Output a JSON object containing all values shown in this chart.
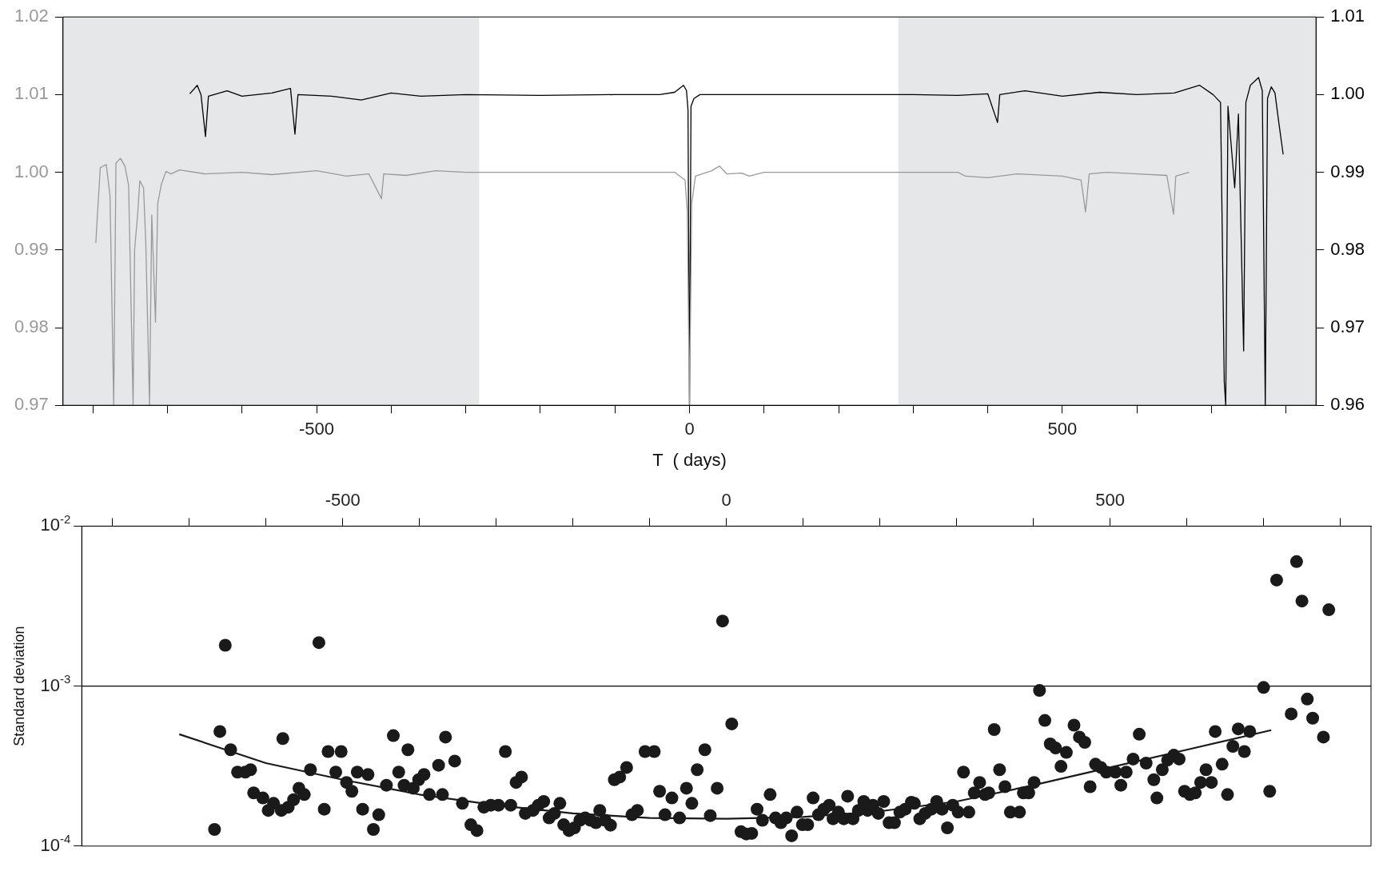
{
  "chart_data": [
    {
      "type": "line",
      "xlabel": "T  ( days)",
      "xlim": [
        -840,
        840
      ],
      "xticks": [
        {
          "value": -800,
          "label": null
        },
        {
          "value": -700,
          "label": null
        },
        {
          "value": -600,
          "label": null
        },
        -500,
        {
          "value": -400,
          "label": null
        },
        {
          "value": -300,
          "label": null
        },
        {
          "value": -200,
          "label": null
        },
        {
          "value": -100,
          "label": null
        },
        0,
        {
          "value": 100,
          "label": null
        },
        {
          "value": 200,
          "label": null
        },
        {
          "value": 300,
          "label": null
        },
        {
          "value": 400,
          "label": null
        },
        500,
        {
          "value": 600,
          "label": null
        },
        {
          "value": 700,
          "label": null
        },
        {
          "value": 800,
          "label": null
        }
      ],
      "ylim": [
        0.97,
        1.02
      ],
      "yticks": [
        0.97,
        0.98,
        0.99,
        {
          "value": 1,
          "label": "1.00"
        },
        1.01,
        1.02
      ],
      "y2lim": [
        0.96,
        1.01
      ],
      "y2ticks": [
        0.96,
        0.97,
        0.98,
        0.99,
        {
          "value": 1,
          "label": "1.00"
        },
        1.01
      ],
      "bands": [
        {
          "axis": "x",
          "from": -840,
          "to": -282,
          "color": "#e6e7e8"
        },
        {
          "axis": "x",
          "from": 280,
          "to": 840,
          "color": "#e6e7e8"
        }
      ],
      "series": [
        {
          "color": "#999999",
          "axis": "y",
          "x": [
            -796,
            -794,
            -790,
            -782,
            -777,
            -772,
            -769,
            -763,
            -757,
            -752,
            -746,
            -744,
            -740,
            -737,
            -732,
            -729,
            -724,
            -721,
            -716,
            -713,
            -708,
            -702,
            -695,
            -684,
            -650,
            -600,
            -560,
            -500,
            -460,
            -430,
            -413,
            -410,
            -380,
            -340,
            -300,
            -200,
            -100,
            -20,
            -6,
            -3,
            0,
            3,
            8,
            30,
            40,
            50,
            70,
            80,
            100,
            200,
            300,
            360,
            370,
            400,
            440,
            500,
            525,
            531,
            536,
            560,
            600,
            640,
            649,
            652,
            670
          ],
          "values": [
            0.9909,
            0.9943,
            1.0006,
            1.001,
            0.997,
            0.97,
            1.0012,
            1.0018,
            1.0008,
            0.9983,
            0.97,
            0.99,
            0.9945,
            0.9989,
            0.998,
            0.9909,
            0.97,
            0.9945,
            0.9807,
            0.996,
            0.9985,
            1.0001,
            0.9998,
            1.0003,
            0.9998,
            1.0,
            0.9997,
            1.0002,
            0.9995,
            0.9998,
            0.9966,
            0.9998,
            0.9996,
            1.0002,
            1.0,
            1.0,
            1.0,
            1.0,
            0.999,
            0.995,
            0.97,
            0.996,
            0.9995,
            1.0002,
            1.0008,
            0.9998,
            0.9999,
            0.9995,
            1.0,
            1.0,
            1.0,
            1.0,
            0.9995,
            0.9993,
            0.9998,
            0.9995,
            0.999,
            0.9949,
            0.9998,
            1.0,
            0.9998,
            0.9996,
            0.9946,
            0.9995,
            1.0
          ]
        },
        {
          "color": "#000000",
          "axis": "y2",
          "x": [
            -670,
            -660,
            -655,
            -649,
            -645,
            -620,
            -600,
            -560,
            -535,
            -529,
            -525,
            -480,
            -440,
            -400,
            -360,
            -300,
            -200,
            -100,
            -40,
            -20,
            -8,
            -4,
            -2,
            0,
            2,
            6,
            14,
            100,
            200,
            300,
            360,
            400,
            413,
            416,
            450,
            500,
            550,
            600,
            650,
            684,
            702,
            712,
            717,
            719,
            722,
            731,
            736,
            743,
            746,
            752,
            763,
            768,
            772,
            775,
            780,
            785,
            790,
            796
          ],
          "values": [
            1.0001,
            1.0012,
            1.0,
            0.9946,
            0.9998,
            1.0005,
            0.9998,
            1.0002,
            1.0008,
            0.9949,
            1.0,
            0.9998,
            0.9993,
            1.0002,
            0.9998,
            1.0,
            0.9999,
            1.0,
            1.0,
            1.0003,
            1.0012,
            1.0005,
            0.998,
            0.96,
            0.9985,
            0.9995,
            1.0,
            1.0,
            1.0,
            1.0,
            0.9999,
            1.0001,
            0.9964,
            1.0,
            1.0005,
            0.9998,
            1.0003,
            1.0,
            1.0002,
            1.0012,
            1.0,
            0.999,
            0.963,
            0.96,
            0.9985,
            0.988,
            0.9975,
            0.967,
            0.999,
            1.0012,
            1.0022,
            1.0005,
            0.96,
            0.9995,
            1.001,
            1.0002,
            0.9965,
            0.9923
          ]
        }
      ]
    },
    {
      "type": "scatter",
      "ylabel": "Standard deviation",
      "log": "y",
      "xlim": [
        -840,
        840
      ],
      "xticks": [
        {
          "value": -800,
          "label": null
        },
        {
          "value": -700,
          "label": null
        },
        {
          "value": -600,
          "label": null
        },
        -500,
        {
          "value": -400,
          "label": null
        },
        {
          "value": -300,
          "label": null
        },
        {
          "value": -200,
          "label": null
        },
        {
          "value": -100,
          "label": null
        },
        0,
        {
          "value": 100,
          "label": null
        },
        {
          "value": 200,
          "label": null
        },
        {
          "value": 300,
          "label": null
        },
        {
          "value": 400,
          "label": null
        },
        500,
        {
          "value": 600,
          "label": null
        },
        {
          "value": 700,
          "label": null
        },
        {
          "value": 800,
          "label": null
        }
      ],
      "ylim": [
        0.0001,
        0.01
      ],
      "yticks": [
        {
          "value": 0.0001,
          "label": "10$^{-4}$"
        },
        {
          "value": 0.001,
          "label": "10$^{-3}$"
        },
        {
          "value": 0.01,
          "label": "10$^{-2}$"
        }
      ],
      "ref_lines": [
        {
          "axis": "y",
          "value": 0.001,
          "color": "#000000"
        }
      ],
      "series": [
        {
          "type": "scatter",
          "marker": "circle",
          "color": "#1a1a1a",
          "x": [
            -667,
            -660,
            -653,
            -646,
            -637,
            -627,
            -620,
            -616,
            -604,
            -597,
            -590,
            -580,
            -578,
            -571,
            -564,
            -557,
            -550,
            -542,
            -531,
            -524,
            -519,
            -509,
            -502,
            -495,
            -488,
            -481,
            -474,
            -467,
            -460,
            -453,
            -443,
            -434,
            -427,
            -420,
            -415,
            -408,
            -401,
            -394,
            -387,
            -375,
            -370,
            -366,
            -354,
            -344,
            -333,
            -325,
            -316,
            -307,
            -297,
            -288,
            -281,
            -274,
            -267,
            -262,
            -252,
            -245,
            -238,
            -231,
            -224,
            -217,
            -212,
            -205,
            -198,
            -191,
            -184,
            -177,
            -170,
            -165,
            -158,
            -151,
            -146,
            -139,
            -130,
            -123,
            -116,
            -106,
            -94,
            -87,
            -80,
            -71,
            -61,
            -52,
            -45,
            -38,
            -28,
            -21,
            -12,
            -5,
            7,
            19,
            26,
            33,
            40,
            47,
            57,
            64,
            71,
            78,
            85,
            92,
            99,
            106,
            113,
            120,
            127,
            134,
            139,
            146,
            153,
            158,
            165,
            172,
            179,
            184,
            191,
            198,
            205,
            212,
            219,
            226,
            233,
            241,
            245,
            252,
            259,
            267,
            274,
            281,
            288,
            295,
            302,
            309,
            316,
            323,
            330,
            337,
            342,
            349,
            356,
            363,
            370,
            382,
            387,
            394,
            401,
            408,
            415,
            422,
            429,
            436,
            443,
            453,
            460,
            467,
            474,
            481,
            488,
            495,
            507,
            514,
            521,
            530,
            538,
            547,
            557,
            561,
            568,
            575,
            583,
            590,
            597,
            604,
            611,
            618,
            625,
            632,
            637,
            646,
            653,
            660,
            667,
            675,
            682,
            700,
            708,
            717,
            736,
            743,
            750,
            757,
            764,
            778,
            785
          ],
          "values": [
            0.000127,
            0.00052,
            0.0018,
            0.0004,
            0.00029,
            0.00029,
            0.0003,
            0.000215,
            0.0002,
            0.000167,
            0.000185,
            0.000167,
            0.00047,
            0.000175,
            0.000195,
            0.00023,
            0.00021,
            0.0003,
            0.00187,
            0.00017,
            0.00039,
            0.00029,
            0.00039,
            0.00025,
            0.00022,
            0.00029,
            0.00017,
            0.00028,
            0.000127,
            0.000157,
            0.00024,
            0.00049,
            0.00029,
            0.00024,
            0.0004,
            0.00023,
            0.00026,
            0.00028,
            0.00021,
            0.00032,
            0.00021,
            0.00048,
            0.00034,
            0.000185,
            0.000136,
            0.000125,
            0.000175,
            0.00018,
            0.00018,
            0.00039,
            0.00018,
            0.00025,
            0.00027,
            0.00016,
            0.000167,
            0.00018,
            0.00019,
            0.00015,
            0.00016,
            0.000185,
            0.000136,
            0.000125,
            0.00013,
            0.000145,
            0.00015,
            0.000145,
            0.00014,
            0.000167,
            0.000145,
            0.000135,
            0.00026,
            0.00027,
            0.00031,
            0.000157,
            0.000167,
            0.00039,
            0.00039,
            0.00022,
            0.000157,
            0.0002,
            0.00015,
            0.00023,
            0.000185,
            0.0003,
            0.0004,
            0.000155,
            0.00023,
            0.00255,
            0.00058,
            0.000123,
            0.000119,
            0.00012,
            0.00017,
            0.000145,
            0.00021,
            0.00015,
            0.00014,
            0.00015,
            0.000116,
            0.000163,
            0.000136,
            0.000136,
            0.0002,
            0.000157,
            0.00017,
            0.00018,
            0.000148,
            0.000163,
            0.000148,
            0.000205,
            0.000148,
            0.000167,
            0.00019,
            0.000167,
            0.00018,
            0.00016,
            0.00019,
            0.00014,
            0.00014,
            0.000163,
            0.00017,
            0.000188,
            0.000185,
            0.000148,
            0.00016,
            0.00017,
            0.00019,
            0.00017,
            0.00013,
            0.00018,
            0.000163,
            0.00029,
            0.000163,
            0.000215,
            0.00025,
            0.00021,
            0.000215,
            0.000535,
            0.0003,
            0.000235,
            0.000163,
            0.000163,
            0.000215,
            0.000215,
            0.00025,
            0.00094,
            0.00061,
            0.000435,
            0.00041,
            0.000315,
            0.000385,
            0.00057,
            0.00048,
            0.000445,
            0.000235,
            0.000325,
            0.00031,
            0.00029,
            0.00029,
            0.00024,
            0.00029,
            0.00035,
            0.0005,
            0.00033,
            0.00026,
            0.0002,
            0.0003,
            0.000345,
            0.00037,
            0.00035,
            0.00022,
            0.00021,
            0.000215,
            0.00025,
            0.0003,
            0.00025,
            0.00052,
            0.000325,
            0.00021,
            0.00042,
            0.00054,
            0.00039,
            0.00052,
            0.00098,
            0.00022,
            0.0046,
            0.00067,
            0.006,
            0.0034,
            0.00083,
            0.00063,
            0.00048,
            0.003
          ]
        },
        {
          "type": "line",
          "marker": "none",
          "color": "#1a1a1a",
          "x": [
            -713,
            -600,
            -500,
            -400,
            -300,
            -200,
            -100,
            0,
            100,
            200,
            300,
            400,
            500,
            600,
            710
          ],
          "values": [
            0.0005,
            0.00033,
            0.00026,
            0.00021,
            0.00018,
            0.00016,
            0.00015,
            0.000148,
            0.000152,
            0.000165,
            0.00019,
            0.00024,
            0.00031,
            0.0004,
            0.00053
          ]
        }
      ]
    }
  ]
}
